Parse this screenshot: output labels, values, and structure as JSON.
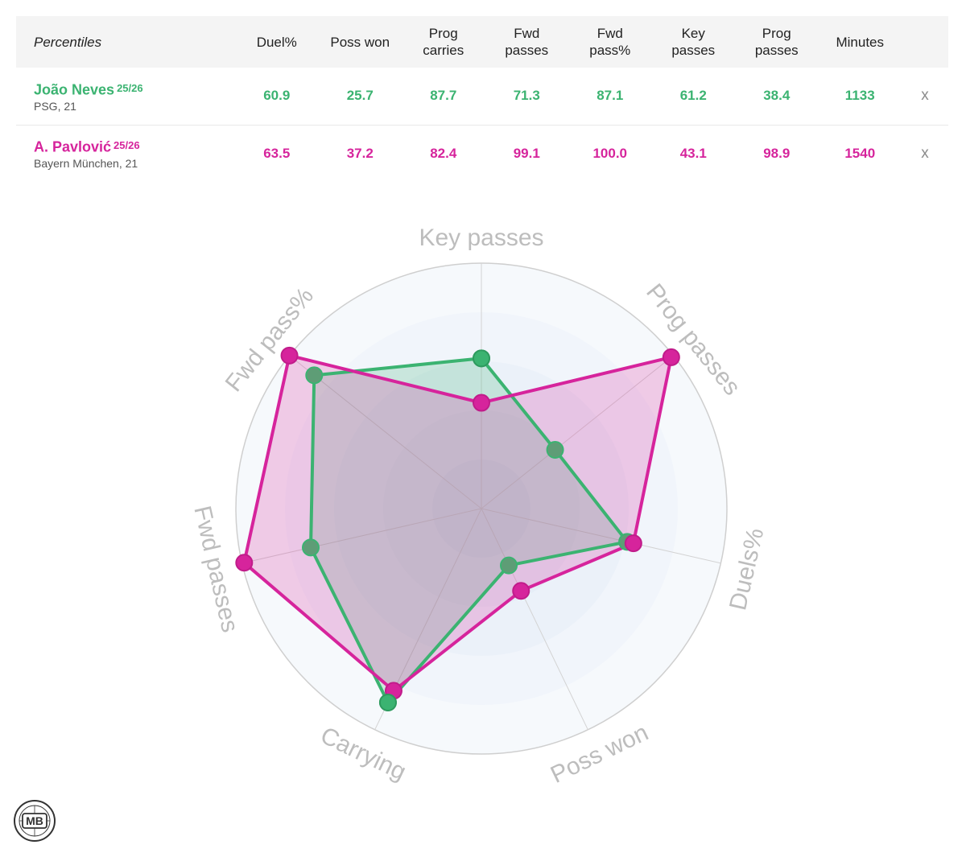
{
  "table": {
    "header": {
      "first": "Percentiles",
      "columns": [
        [
          "Duel%"
        ],
        [
          "Poss won"
        ],
        [
          "Prog",
          "carries"
        ],
        [
          "Fwd",
          "passes"
        ],
        [
          "Fwd",
          "pass%"
        ],
        [
          "Key",
          "passes"
        ],
        [
          "Prog",
          "passes"
        ],
        [
          "Minutes"
        ]
      ]
    },
    "players": [
      {
        "name": "João Neves",
        "season": "25/26",
        "team": "PSG, 21",
        "color": "#3bb371",
        "values": [
          "60.9",
          "25.7",
          "87.7",
          "71.3",
          "87.1",
          "61.2",
          "38.4",
          "1133"
        ],
        "remove": "x"
      },
      {
        "name": "A. Pavlović",
        "season": "25/26",
        "team": "Bayern München, 21",
        "color": "#d6249c",
        "values": [
          "63.5",
          "37.2",
          "82.4",
          "99.1",
          "100.0",
          "43.1",
          "98.9",
          "1540"
        ],
        "remove": "x"
      }
    ]
  },
  "chart_data": {
    "type": "radar",
    "axes": [
      "Key passes",
      "Prog passes",
      "Duels%",
      "Poss won",
      "Carrying",
      "Fwd passes",
      "Fwd pass%"
    ],
    "range": [
      0,
      100
    ],
    "series": [
      {
        "name": "João Neves",
        "color": "#3bb371",
        "values": [
          61.2,
          38.4,
          60.9,
          25.7,
          87.7,
          71.3,
          87.1
        ]
      },
      {
        "name": "A. Pavlović",
        "color": "#d6249c",
        "values": [
          43.1,
          98.9,
          63.5,
          37.2,
          82.4,
          99.1,
          100.0
        ]
      }
    ]
  },
  "logo": {
    "text": "MB"
  }
}
